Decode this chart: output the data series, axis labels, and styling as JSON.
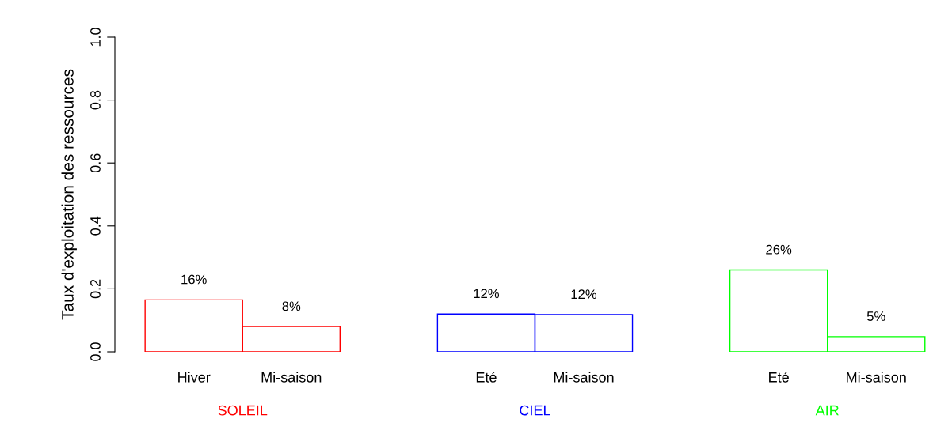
{
  "chart_data": {
    "type": "bar",
    "ylabel": "Taux d'exploitation des ressources",
    "categories": [
      "Hiver",
      "Mi-saison",
      null,
      "Eté",
      "Mi-saison",
      null,
      "Eté",
      "Mi-saison"
    ],
    "series": [
      {
        "name": "SOLEIL",
        "color": "#ff0000",
        "values": [
          0.165,
          0.08,
          null,
          null,
          null,
          null,
          null,
          null
        ],
        "value_labels": [
          "16%",
          "8%",
          null,
          null,
          null,
          null,
          null,
          null
        ]
      },
      {
        "name": "CIEL",
        "color": "#0000ff",
        "values": [
          null,
          null,
          null,
          0.12,
          0.118,
          null,
          null,
          null
        ],
        "value_labels": [
          null,
          null,
          null,
          "12%",
          "12%",
          null,
          null,
          null
        ]
      },
      {
        "name": "AIR",
        "color": "#00ff00",
        "values": [
          null,
          null,
          null,
          null,
          null,
          null,
          0.26,
          0.048
        ],
        "value_labels": [
          null,
          null,
          null,
          null,
          null,
          null,
          "26%",
          "5%"
        ]
      }
    ],
    "ylim": [
      0,
      1
    ],
    "yticks": [
      {
        "value": 0,
        "label": "0.0"
      },
      {
        "value": 0.2,
        "label": "0.2"
      },
      {
        "value": 0.4,
        "label": "0.4"
      },
      {
        "value": 0.6,
        "label": "0.6"
      },
      {
        "value": 0.8,
        "label": "0.8"
      },
      {
        "value": 1,
        "label": "1.0"
      }
    ],
    "grid": false,
    "legend": false
  }
}
